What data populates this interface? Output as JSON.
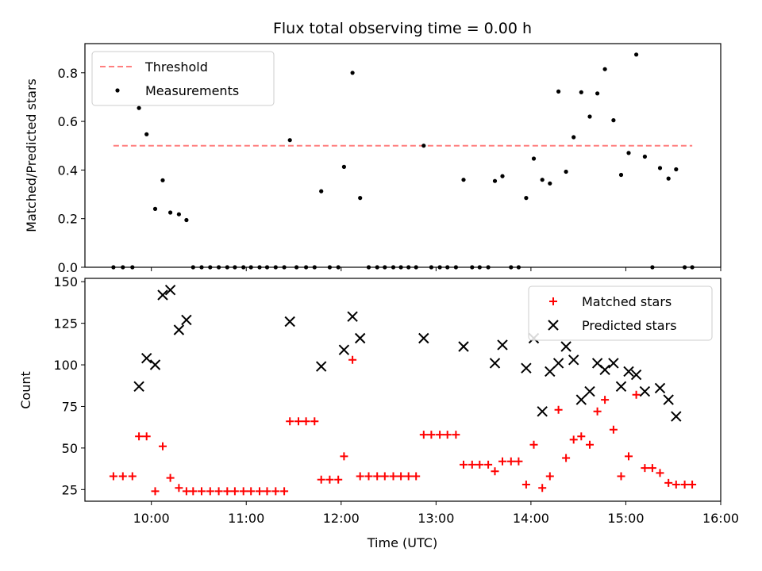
{
  "chart_data": [
    {
      "type": "scatter",
      "title": "Flux total observing time = 0.00 h",
      "xlabel": "",
      "ylabel": "Matched/Predicted stars",
      "xlim": [
        9.3,
        16.0
      ],
      "ylim": [
        0.0,
        0.92
      ],
      "yticks": [
        "0.0",
        "0.2",
        "0.4",
        "0.6",
        "0.8"
      ],
      "legend_position": "upper-left",
      "threshold": {
        "name": "Threshold",
        "value": 0.5,
        "x_range": [
          9.6,
          15.7
        ],
        "color": "#ff7f7f",
        "style": "dashed"
      },
      "series": [
        {
          "name": "Measurements",
          "color": "#000000",
          "marker": "dot",
          "points": [
            [
              9.6,
              0
            ],
            [
              9.7,
              0
            ],
            [
              9.8,
              0
            ],
            [
              9.87,
              0.655
            ],
            [
              9.95,
              0.547
            ],
            [
              10.04,
              0.24
            ],
            [
              10.12,
              0.358
            ],
            [
              10.2,
              0.225
            ],
            [
              10.29,
              0.218
            ],
            [
              10.37,
              0.194
            ],
            [
              10.44,
              0
            ],
            [
              10.53,
              0
            ],
            [
              10.62,
              0
            ],
            [
              10.71,
              0
            ],
            [
              10.8,
              0
            ],
            [
              10.88,
              0
            ],
            [
              10.97,
              0
            ],
            [
              11.05,
              0
            ],
            [
              11.14,
              0
            ],
            [
              11.22,
              0
            ],
            [
              11.31,
              0
            ],
            [
              11.4,
              0
            ],
            [
              11.46,
              0.523
            ],
            [
              11.53,
              0
            ],
            [
              11.63,
              0
            ],
            [
              11.72,
              0
            ],
            [
              11.79,
              0.313
            ],
            [
              11.88,
              0
            ],
            [
              11.97,
              0
            ],
            [
              12.03,
              0.413
            ],
            [
              12.12,
              0.8
            ],
            [
              12.2,
              0.285
            ],
            [
              12.29,
              0
            ],
            [
              12.38,
              0
            ],
            [
              12.46,
              0
            ],
            [
              12.55,
              0
            ],
            [
              12.63,
              0
            ],
            [
              12.71,
              0
            ],
            [
              12.79,
              0
            ],
            [
              12.87,
              0.5
            ],
            [
              12.95,
              0
            ],
            [
              13.04,
              0
            ],
            [
              13.12,
              0
            ],
            [
              13.21,
              0
            ],
            [
              13.29,
              0.36
            ],
            [
              13.38,
              0
            ],
            [
              13.46,
              0
            ],
            [
              13.55,
              0
            ],
            [
              13.62,
              0.355
            ],
            [
              13.7,
              0.375
            ],
            [
              13.79,
              0
            ],
            [
              13.87,
              0
            ],
            [
              13.95,
              0.285
            ],
            [
              14.03,
              0.447
            ],
            [
              14.12,
              0.36
            ],
            [
              14.2,
              0.345
            ],
            [
              14.29,
              0.723
            ],
            [
              14.37,
              0.393
            ],
            [
              14.45,
              0.535
            ],
            [
              14.53,
              0.72
            ],
            [
              14.62,
              0.62
            ],
            [
              14.7,
              0.715
            ],
            [
              14.78,
              0.815
            ],
            [
              14.87,
              0.605
            ],
            [
              14.95,
              0.38
            ],
            [
              15.03,
              0.47
            ],
            [
              15.11,
              0.875
            ],
            [
              15.2,
              0.455
            ],
            [
              15.28,
              0
            ],
            [
              15.36,
              0.408
            ],
            [
              15.45,
              0.365
            ],
            [
              15.53,
              0.403
            ],
            [
              15.62,
              0
            ],
            [
              15.7,
              0
            ]
          ]
        }
      ]
    },
    {
      "type": "scatter",
      "title": "",
      "xlabel": "Time (UTC)",
      "ylabel": "Count",
      "xlim": [
        9.3,
        16.0
      ],
      "ylim": [
        18,
        152
      ],
      "yticks": [
        "25",
        "50",
        "75",
        "100",
        "125",
        "150"
      ],
      "xticks": [
        "10:00",
        "11:00",
        "12:00",
        "13:00",
        "14:00",
        "15:00",
        "16:00"
      ],
      "legend_position": "upper-right",
      "series": [
        {
          "name": "Matched stars",
          "color": "#ff0000",
          "marker": "plus",
          "points": [
            [
              9.6,
              33
            ],
            [
              9.7,
              33
            ],
            [
              9.8,
              33
            ],
            [
              9.87,
              57
            ],
            [
              9.95,
              57
            ],
            [
              10.04,
              24
            ],
            [
              10.12,
              51
            ],
            [
              10.2,
              32
            ],
            [
              10.29,
              26
            ],
            [
              10.37,
              24
            ],
            [
              10.44,
              24
            ],
            [
              10.53,
              24
            ],
            [
              10.62,
              24
            ],
            [
              10.71,
              24
            ],
            [
              10.8,
              24
            ],
            [
              10.88,
              24
            ],
            [
              10.97,
              24
            ],
            [
              11.05,
              24
            ],
            [
              11.14,
              24
            ],
            [
              11.22,
              24
            ],
            [
              11.31,
              24
            ],
            [
              11.4,
              24
            ],
            [
              11.46,
              66
            ],
            [
              11.55,
              66
            ],
            [
              11.63,
              66
            ],
            [
              11.72,
              66
            ],
            [
              11.79,
              31
            ],
            [
              11.88,
              31
            ],
            [
              11.97,
              31
            ],
            [
              12.03,
              45
            ],
            [
              12.12,
              103
            ],
            [
              12.2,
              33
            ],
            [
              12.29,
              33
            ],
            [
              12.38,
              33
            ],
            [
              12.46,
              33
            ],
            [
              12.55,
              33
            ],
            [
              12.63,
              33
            ],
            [
              12.71,
              33
            ],
            [
              12.79,
              33
            ],
            [
              12.87,
              58
            ],
            [
              12.95,
              58
            ],
            [
              13.04,
              58
            ],
            [
              13.12,
              58
            ],
            [
              13.21,
              58
            ],
            [
              13.29,
              40
            ],
            [
              13.38,
              40
            ],
            [
              13.46,
              40
            ],
            [
              13.55,
              40
            ],
            [
              13.62,
              36
            ],
            [
              13.7,
              42
            ],
            [
              13.79,
              42
            ],
            [
              13.87,
              42
            ],
            [
              13.95,
              28
            ],
            [
              14.03,
              52
            ],
            [
              14.12,
              26
            ],
            [
              14.2,
              33
            ],
            [
              14.29,
              73
            ],
            [
              14.37,
              44
            ],
            [
              14.45,
              55
            ],
            [
              14.53,
              57
            ],
            [
              14.62,
              52
            ],
            [
              14.7,
              72
            ],
            [
              14.78,
              79
            ],
            [
              14.87,
              61
            ],
            [
              14.95,
              33
            ],
            [
              15.03,
              45
            ],
            [
              15.11,
              82
            ],
            [
              15.2,
              38
            ],
            [
              15.28,
              38
            ],
            [
              15.36,
              35
            ],
            [
              15.45,
              29
            ],
            [
              15.53,
              28
            ],
            [
              15.62,
              28
            ],
            [
              15.7,
              28
            ]
          ]
        },
        {
          "name": "Predicted stars",
          "color": "#000000",
          "marker": "x",
          "points": [
            [
              9.87,
              87
            ],
            [
              9.95,
              104
            ],
            [
              10.04,
              100
            ],
            [
              10.12,
              142
            ],
            [
              10.2,
              145
            ],
            [
              10.29,
              121
            ],
            [
              10.37,
              127
            ],
            [
              11.46,
              126
            ],
            [
              11.79,
              99
            ],
            [
              12.03,
              109
            ],
            [
              12.12,
              129
            ],
            [
              12.2,
              116
            ],
            [
              12.87,
              116
            ],
            [
              13.29,
              111
            ],
            [
              13.62,
              101
            ],
            [
              13.7,
              112
            ],
            [
              13.95,
              98
            ],
            [
              14.03,
              116
            ],
            [
              14.12,
              72
            ],
            [
              14.2,
              96
            ],
            [
              14.29,
              101
            ],
            [
              14.37,
              111
            ],
            [
              14.45,
              103
            ],
            [
              14.53,
              79
            ],
            [
              14.62,
              84
            ],
            [
              14.7,
              101
            ],
            [
              14.78,
              97
            ],
            [
              14.87,
              101
            ],
            [
              14.95,
              87
            ],
            [
              15.03,
              96
            ],
            [
              15.11,
              94
            ],
            [
              15.2,
              84
            ],
            [
              15.36,
              86
            ],
            [
              15.45,
              79
            ],
            [
              15.53,
              69
            ]
          ]
        }
      ]
    }
  ]
}
